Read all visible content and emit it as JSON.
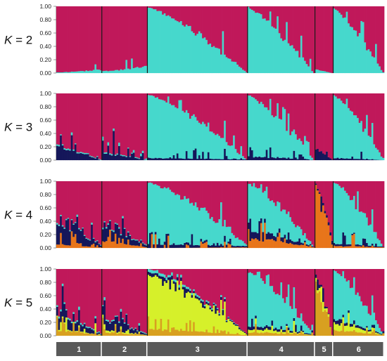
{
  "chart_data": {
    "type": "bar",
    "subtype": "stacked-admixture",
    "yticks": [
      "0.00",
      "0.20",
      "0.40",
      "0.60",
      "0.80",
      "1.00"
    ],
    "ylim": [
      0,
      1
    ],
    "grid": false,
    "populations": [
      {
        "label": "1",
        "n": 25
      },
      {
        "label": "2",
        "n": 25
      },
      {
        "label": "3",
        "n": 55
      },
      {
        "label": "4",
        "n": 37
      },
      {
        "label": "5",
        "n": 10
      },
      {
        "label": "6",
        "n": 28
      }
    ],
    "cluster_colors": {
      "magenta": "#c0185a",
      "cyan": "#46d8cc",
      "navy": "#15175a",
      "orange": "#e8751a",
      "yellow": "#d6f02a",
      "gold": "#d8a020"
    },
    "panels": [
      {
        "k_prefix": "K",
        "k_suffix": " = 2",
        "clusters": [
          "magenta",
          "cyan"
        ],
        "profiles": [
          [
            [
              0.99,
              0.95
            ],
            [
              0.01,
              0.05
            ]
          ],
          [
            [
              0.97,
              0.9
            ],
            [
              0.03,
              0.1
            ]
          ],
          [
            [
              0.02,
              0.99
            ],
            [
              0.98,
              0.01
            ]
          ],
          [
            [
              0.03,
              1.0
            ],
            [
              0.97,
              0.0
            ]
          ],
          [
            [
              0.95,
              1.0
            ],
            [
              0.05,
              0.0
            ]
          ],
          [
            [
              0.04,
              0.99
            ],
            [
              0.96,
              0.01
            ]
          ]
        ]
      },
      {
        "k_prefix": "K",
        "k_suffix": " = 3",
        "clusters": [
          "magenta",
          "cyan",
          "navy"
        ],
        "profiles": [
          [
            [
              0.8,
              0.99
            ],
            [
              0.02,
              0.01
            ],
            [
              0.18,
              0.0
            ]
          ],
          [
            [
              0.88,
              0.99
            ],
            [
              0.02,
              0.01
            ],
            [
              0.1,
              0.0
            ]
          ],
          [
            [
              0.02,
              0.99
            ],
            [
              0.95,
              0.0
            ],
            [
              0.03,
              0.01
            ]
          ],
          [
            [
              0.03,
              1.0
            ],
            [
              0.92,
              0.0
            ],
            [
              0.05,
              0.0
            ]
          ],
          [
            [
              0.85,
              0.99
            ],
            [
              0.0,
              0.0
            ],
            [
              0.15,
              0.01
            ]
          ],
          [
            [
              0.03,
              0.99
            ],
            [
              0.94,
              0.01
            ],
            [
              0.03,
              0.0
            ]
          ]
        ]
      },
      {
        "k_prefix": "K",
        "k_suffix": " = 4",
        "clusters": [
          "magenta",
          "cyan",
          "navy",
          "orange"
        ],
        "profiles": [
          [
            [
              0.65,
              0.95
            ],
            [
              0.02,
              0.01
            ],
            [
              0.28,
              0.03
            ],
            [
              0.05,
              0.01
            ]
          ],
          [
            [
              0.7,
              0.95
            ],
            [
              0.02,
              0.01
            ],
            [
              0.18,
              0.03
            ],
            [
              0.1,
              0.01
            ]
          ],
          [
            [
              0.02,
              0.95
            ],
            [
              0.93,
              0.02
            ],
            [
              0.05,
              0.02
            ],
            [
              0.0,
              0.01
            ]
          ],
          [
            [
              0.05,
              0.98
            ],
            [
              0.7,
              0.0
            ],
            [
              0.1,
              0.01
            ],
            [
              0.15,
              0.01
            ]
          ],
          [
            [
              0.05,
              0.9
            ],
            [
              0.0,
              0.0
            ],
            [
              0.02,
              0.05
            ],
            [
              0.93,
              0.05
            ]
          ],
          [
            [
              0.02,
              0.98
            ],
            [
              0.92,
              0.0
            ],
            [
              0.03,
              0.01
            ],
            [
              0.03,
              0.01
            ]
          ]
        ]
      },
      {
        "k_prefix": "K",
        "k_suffix": " = 5",
        "clusters": [
          "magenta",
          "cyan",
          "navy",
          "yellow",
          "gold"
        ],
        "profiles": [
          [
            [
              0.7,
              0.97
            ],
            [
              0.03,
              0.01
            ],
            [
              0.17,
              0.01
            ],
            [
              0.02,
              0.0
            ],
            [
              0.08,
              0.01
            ]
          ],
          [
            [
              0.75,
              0.97
            ],
            [
              0.02,
              0.01
            ],
            [
              0.15,
              0.01
            ],
            [
              0.03,
              0.0
            ],
            [
              0.05,
              0.01
            ]
          ],
          [
            [
              0.0,
              0.97
            ],
            [
              0.05,
              0.0
            ],
            [
              0.05,
              0.01
            ],
            [
              0.8,
              0.01
            ],
            [
              0.1,
              0.01
            ]
          ],
          [
            [
              0.05,
              0.98
            ],
            [
              0.8,
              0.0
            ],
            [
              0.05,
              0.01
            ],
            [
              0.05,
              0.0
            ],
            [
              0.05,
              0.01
            ]
          ],
          [
            [
              0.1,
              0.99
            ],
            [
              0.0,
              0.0
            ],
            [
              0.05,
              0.0
            ],
            [
              0.05,
              0.0
            ],
            [
              0.8,
              0.01
            ]
          ],
          [
            [
              0.02,
              0.98
            ],
            [
              0.75,
              0.0
            ],
            [
              0.05,
              0.01
            ],
            [
              0.1,
              0.0
            ],
            [
              0.08,
              0.01
            ]
          ]
        ]
      }
    ]
  }
}
